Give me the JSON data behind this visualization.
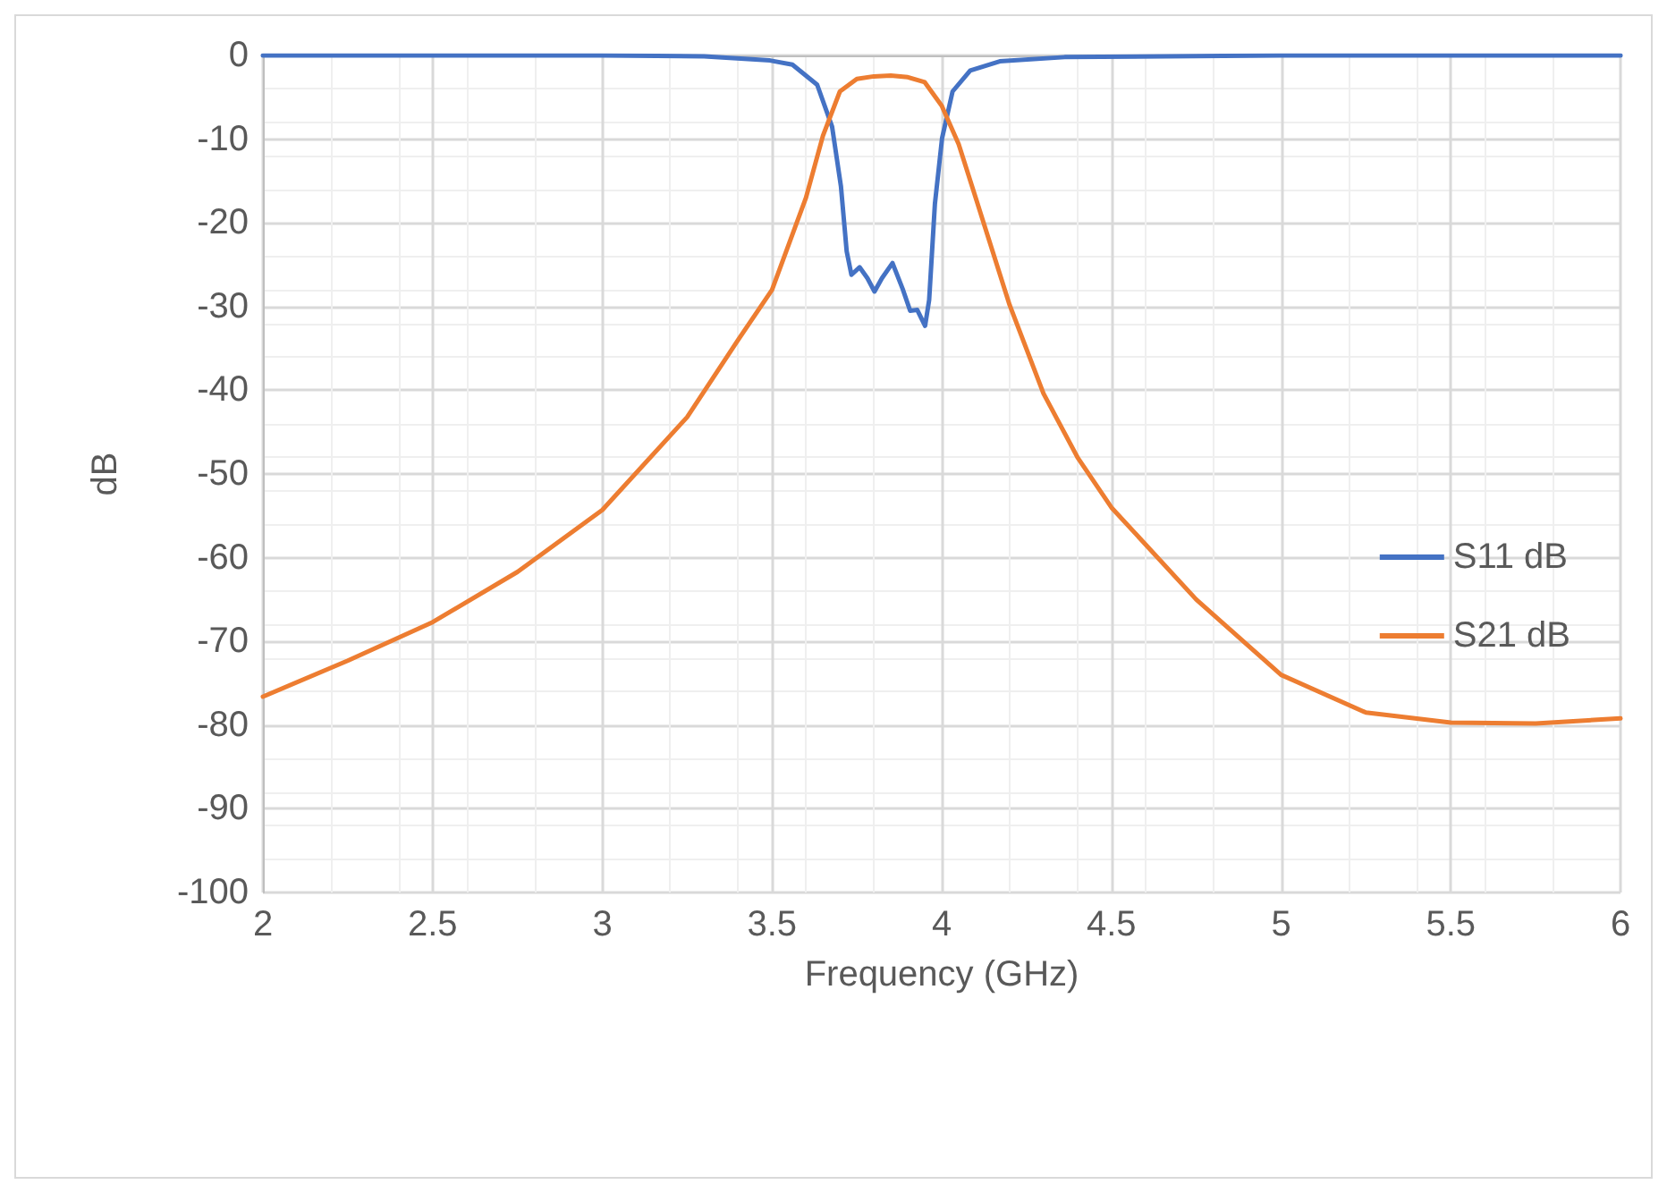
{
  "chart_data": {
    "type": "line",
    "xlabel": "Frequency (GHz)",
    "ylabel": "dB",
    "xlim": [
      2,
      6
    ],
    "xticks": [
      2,
      2.5,
      3,
      3.5,
      4,
      4.5,
      5,
      5.5,
      6
    ],
    "ylim": [
      -100,
      0
    ],
    "yticks": [
      -100,
      -90,
      -80,
      -70,
      -60,
      -50,
      -40,
      -30,
      -20,
      -10,
      0
    ],
    "grid": true,
    "legend": "right",
    "marker": "none",
    "line_style": "solid",
    "series": [
      {
        "name": "S11 dB",
        "color": "#4472c4",
        "x": [
          2,
          2.5,
          3,
          3.3,
          3.494,
          3.56,
          3.633,
          3.677,
          3.703,
          3.72,
          3.734,
          3.758,
          3.781,
          3.802,
          3.824,
          3.855,
          3.885,
          3.907,
          3.928,
          3.951,
          3.963,
          3.98,
          4.001,
          4.032,
          4.084,
          4.171,
          4.362,
          5,
          6
        ],
        "values": [
          0,
          0,
          0,
          -0.1,
          -0.6,
          -1.1,
          -3.5,
          -8.5,
          -15.6,
          -23.4,
          -26.2,
          -25.3,
          -26.6,
          -28.2,
          -26.6,
          -24.8,
          -27.9,
          -30.5,
          -30.4,
          -32.3,
          -29.2,
          -17.7,
          -9.9,
          -4.3,
          -1.8,
          -0.7,
          -0.2,
          0,
          0
        ]
      },
      {
        "name": "S21 dB",
        "color": "#ed7d31",
        "x": [
          2,
          2.25,
          2.5,
          2.75,
          3,
          3.25,
          3.4,
          3.5,
          3.6,
          3.65,
          3.7,
          3.75,
          3.8,
          3.85,
          3.9,
          3.95,
          4,
          4.05,
          4.1,
          4.2,
          4.3,
          4.4,
          4.5,
          4.75,
          5,
          5.25,
          5.5,
          5.75,
          6
        ],
        "values": [
          -76.6,
          -72.3,
          -67.7,
          -61.7,
          -54.3,
          -43.2,
          -34,
          -28,
          -17,
          -9.6,
          -4.3,
          -2.8,
          -2.5,
          -2.4,
          -2.6,
          -3.2,
          -6,
          -10.6,
          -17,
          -29.8,
          -40.4,
          -48,
          -54,
          -65,
          -74,
          -78.5,
          -79.7,
          -79.8,
          -79.2
        ]
      }
    ]
  }
}
